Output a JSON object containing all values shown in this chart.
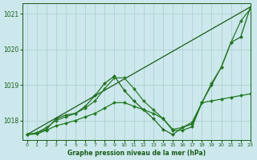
{
  "title": "Graphe pression niveau de la mer (hPa)",
  "background_color": "#cce8ec",
  "grid_color": "#aacccc",
  "line_color_dark": "#1a5c1a",
  "xlim": [
    -0.5,
    23
  ],
  "ylim": [
    1017.45,
    1021.3
  ],
  "yticks": [
    1018,
    1019,
    1020,
    1021
  ],
  "xticks": [
    0,
    1,
    2,
    3,
    4,
    5,
    6,
    7,
    8,
    9,
    10,
    11,
    12,
    13,
    14,
    15,
    16,
    17,
    18,
    19,
    20,
    21,
    22,
    23
  ],
  "series": [
    {
      "name": "diagonal_straight",
      "x": [
        0,
        23
      ],
      "y": [
        1017.6,
        1021.2
      ],
      "color": "#1a5c1a",
      "linewidth": 0.9,
      "marker": null,
      "markersize": 0
    },
    {
      "name": "line_peaked_high",
      "x": [
        0,
        1,
        2,
        3,
        4,
        5,
        6,
        7,
        8,
        9,
        10,
        11,
        12,
        13,
        14,
        15,
        16,
        17,
        18,
        19,
        20,
        21,
        22,
        23
      ],
      "y": [
        1017.6,
        1017.65,
        1017.75,
        1018.05,
        1018.15,
        1018.2,
        1018.4,
        1018.7,
        1019.05,
        1019.25,
        1018.85,
        1018.55,
        1018.3,
        1018.05,
        1017.75,
        1017.6,
        1017.8,
        1017.9,
        1018.5,
        1019.0,
        1019.5,
        1020.2,
        1020.35,
        1021.2
      ],
      "color": "#1e6b1e",
      "linewidth": 0.9,
      "marker": "D",
      "markersize": 2.2
    },
    {
      "name": "line_peaked_medium",
      "x": [
        0,
        1,
        2,
        3,
        4,
        5,
        6,
        7,
        8,
        9,
        10,
        11,
        12,
        13,
        14,
        15,
        16,
        17,
        18,
        19,
        20,
        21,
        22,
        23
      ],
      "y": [
        1017.6,
        1017.65,
        1017.8,
        1018.0,
        1018.1,
        1018.2,
        1018.35,
        1018.55,
        1018.9,
        1019.2,
        1019.2,
        1018.9,
        1018.55,
        1018.3,
        1018.05,
        1017.75,
        1017.8,
        1017.95,
        1018.5,
        1019.05,
        1019.5,
        1020.2,
        1020.8,
        1021.15
      ],
      "color": "#2a7a2a",
      "linewidth": 0.9,
      "marker": "D",
      "markersize": 2.2
    },
    {
      "name": "line_flat_bottom",
      "x": [
        0,
        1,
        2,
        3,
        4,
        5,
        6,
        7,
        8,
        9,
        10,
        11,
        12,
        13,
        14,
        15,
        16,
        17,
        18,
        19,
        20,
        21,
        22,
        23
      ],
      "y": [
        1017.6,
        1017.62,
        1017.72,
        1017.85,
        1017.92,
        1018.0,
        1018.1,
        1018.2,
        1018.35,
        1018.5,
        1018.5,
        1018.4,
        1018.3,
        1018.2,
        1018.05,
        1017.72,
        1017.72,
        1017.82,
        1018.5,
        1018.55,
        1018.6,
        1018.65,
        1018.7,
        1018.75
      ],
      "color": "#1e7a1e",
      "linewidth": 0.9,
      "marker": "D",
      "markersize": 2.2
    }
  ]
}
